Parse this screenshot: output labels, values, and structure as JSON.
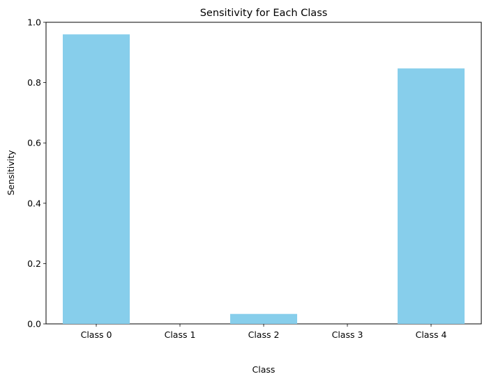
{
  "chart_data": {
    "type": "bar",
    "title": "Sensitivity for Each Class",
    "xlabel": "Class",
    "ylabel": "Sensitivity",
    "categories": [
      "Class 0",
      "Class 1",
      "Class 2",
      "Class 3",
      "Class 4"
    ],
    "values": [
      0.96,
      0.0,
      0.033,
      0.0,
      0.847
    ],
    "ylim": [
      0,
      1.0
    ],
    "yticks": [
      "0.0",
      "0.2",
      "0.4",
      "0.6",
      "0.8",
      "1.0"
    ],
    "ytick_values": [
      0.0,
      0.2,
      0.4,
      0.6,
      0.8,
      1.0
    ],
    "bar_color": "#87CEEB",
    "grid": false,
    "legend": false
  }
}
